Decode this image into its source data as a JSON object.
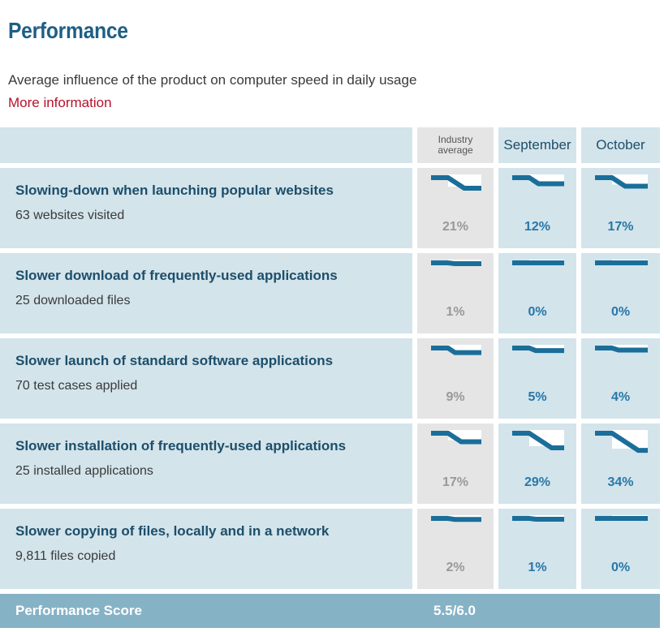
{
  "title": "Performance",
  "subtitle": "Average influence of the product on computer speed in daily usage",
  "more_info": "More information",
  "columns": {
    "industry_line1": "Industry",
    "industry_line2": "average",
    "september": "September",
    "october": "October"
  },
  "rows": [
    {
      "label": "Slowing-down when launching popular websites",
      "sub": "63 websites visited",
      "industry": {
        "value": 21,
        "text": "21%"
      },
      "september": {
        "value": 12,
        "text": "12%"
      },
      "october": {
        "value": 17,
        "text": "17%"
      }
    },
    {
      "label": "Slower download of frequently-used applications",
      "sub": "25 downloaded files",
      "industry": {
        "value": 1,
        "text": "1%"
      },
      "september": {
        "value": 0,
        "text": "0%"
      },
      "october": {
        "value": 0,
        "text": "0%"
      }
    },
    {
      "label": "Slower launch of standard software applications",
      "sub": "70 test cases applied",
      "industry": {
        "value": 9,
        "text": "9%"
      },
      "september": {
        "value": 5,
        "text": "5%"
      },
      "october": {
        "value": 4,
        "text": "4%"
      }
    },
    {
      "label": "Slower installation of frequently-used applications",
      "sub": "25 installed applications",
      "industry": {
        "value": 17,
        "text": "17%"
      },
      "september": {
        "value": 29,
        "text": "29%"
      },
      "october": {
        "value": 34,
        "text": "34%"
      }
    },
    {
      "label": "Slower copying of files, locally and in a network",
      "sub": "9,811 files copied",
      "industry": {
        "value": 2,
        "text": "2%"
      },
      "september": {
        "value": 1,
        "text": "1%"
      },
      "october": {
        "value": 0,
        "text": "0%"
      }
    }
  ],
  "score": {
    "label": "Performance Score",
    "value": "5.5/6.0"
  },
  "colors": {
    "accent": "#1d5f86",
    "link": "#b8122a",
    "panel": "#d3e4eb",
    "industry_panel": "#e5e5e5",
    "score_bar": "#86b2c6"
  }
}
